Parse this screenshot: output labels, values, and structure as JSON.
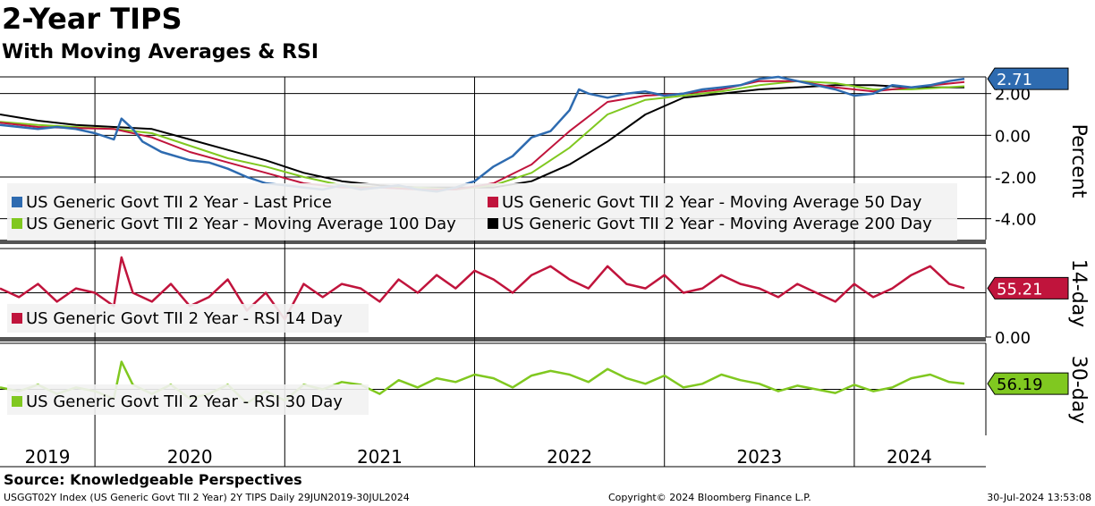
{
  "title": "2-Year TIPS",
  "subtitle": "With Moving Averages & RSI",
  "source": "Source: Knowledgeable Perspectives",
  "footer": {
    "left": "USGGT02Y Index (US Generic Govt TII 2 Year) 2Y TIPS  Daily 29JUN2019-30JUL2024",
    "middle": "Copyright© 2024 Bloomberg Finance L.P.",
    "right": "30-Jul-2024 13:53:08"
  },
  "colors": {
    "last_price": "#2e6bb0",
    "ma50": "#c0143c",
    "ma100": "#80c820",
    "ma200": "#000000",
    "rsi14": "#c0143c",
    "rsi30": "#80c820"
  },
  "chart_data": [
    {
      "type": "line",
      "panel": "price",
      "ylabel": "Percent",
      "ylim": [
        -5,
        2.8
      ],
      "yticks": [
        "2.00",
        "0.00",
        "-2.00",
        "-4.00"
      ],
      "ytick_values": [
        2,
        0,
        -2,
        -4
      ],
      "x_ticks": [
        "2019",
        "2020",
        "2021",
        "2022",
        "2023",
        "2024"
      ],
      "last_value_label": "2.71",
      "series": [
        {
          "name": "US Generic Govt TII 2 Year - Last Price",
          "color_key": "last_price",
          "x": [
            2019.5,
            2019.6,
            2019.7,
            2019.8,
            2019.9,
            2020.0,
            2020.1,
            2020.14,
            2020.2,
            2020.25,
            2020.35,
            2020.5,
            2020.6,
            2020.7,
            2020.8,
            2020.9,
            2021.0,
            2021.1,
            2021.2,
            2021.3,
            2021.4,
            2021.5,
            2021.6,
            2021.7,
            2021.8,
            2021.9,
            2022.0,
            2022.1,
            2022.2,
            2022.3,
            2022.4,
            2022.5,
            2022.55,
            2022.6,
            2022.7,
            2022.8,
            2022.9,
            2023.0,
            2023.1,
            2023.2,
            2023.3,
            2023.4,
            2023.5,
            2023.6,
            2023.7,
            2023.8,
            2023.9,
            2024.0,
            2024.1,
            2024.2,
            2024.3,
            2024.4,
            2024.5,
            2024.58
          ],
          "values": [
            0.5,
            0.4,
            0.3,
            0.4,
            0.3,
            0.1,
            -0.2,
            0.8,
            0.3,
            -0.3,
            -0.8,
            -1.2,
            -1.3,
            -1.6,
            -2.0,
            -2.3,
            -2.4,
            -2.5,
            -2.6,
            -2.4,
            -2.6,
            -2.5,
            -2.4,
            -2.6,
            -2.7,
            -2.5,
            -2.2,
            -1.5,
            -1.0,
            -0.1,
            0.2,
            1.2,
            2.2,
            2.0,
            1.8,
            2.0,
            2.1,
            1.9,
            2.0,
            2.2,
            2.3,
            2.4,
            2.7,
            2.8,
            2.6,
            2.4,
            2.2,
            1.9,
            2.0,
            2.4,
            2.3,
            2.4,
            2.6,
            2.71
          ]
        },
        {
          "name": "US Generic Govt TII 2 Year - Moving Average 50 Day",
          "color_key": "ma50",
          "x": [
            2019.5,
            2019.7,
            2019.9,
            2020.1,
            2020.3,
            2020.5,
            2020.7,
            2020.9,
            2021.1,
            2021.3,
            2021.5,
            2021.7,
            2021.9,
            2022.1,
            2022.3,
            2022.5,
            2022.7,
            2022.9,
            2023.1,
            2023.3,
            2023.5,
            2023.7,
            2023.9,
            2024.1,
            2024.3,
            2024.58
          ],
          "values": [
            0.6,
            0.4,
            0.35,
            0.3,
            -0.1,
            -0.8,
            -1.3,
            -1.8,
            -2.3,
            -2.5,
            -2.5,
            -2.6,
            -2.6,
            -2.3,
            -1.4,
            0.2,
            1.6,
            1.9,
            2.0,
            2.2,
            2.6,
            2.6,
            2.3,
            2.1,
            2.3,
            2.55
          ]
        },
        {
          "name": "US Generic Govt TII 2 Year - Moving Average 100 Day",
          "color_key": "ma100",
          "x": [
            2019.5,
            2019.7,
            2019.9,
            2020.1,
            2020.3,
            2020.5,
            2020.7,
            2020.9,
            2021.1,
            2021.3,
            2021.5,
            2021.7,
            2021.9,
            2022.1,
            2022.3,
            2022.5,
            2022.7,
            2022.9,
            2023.1,
            2023.3,
            2023.5,
            2023.7,
            2023.9,
            2024.1,
            2024.3,
            2024.58
          ],
          "values": [
            0.65,
            0.5,
            0.4,
            0.3,
            0.1,
            -0.5,
            -1.1,
            -1.5,
            -2.0,
            -2.4,
            -2.5,
            -2.5,
            -2.6,
            -2.4,
            -1.8,
            -0.6,
            1.0,
            1.7,
            1.9,
            2.1,
            2.4,
            2.6,
            2.5,
            2.2,
            2.2,
            2.35
          ]
        },
        {
          "name": "US Generic Govt TII 2 Year - Moving Average 200 Day",
          "color_key": "ma200",
          "x": [
            2019.5,
            2019.7,
            2019.9,
            2020.1,
            2020.3,
            2020.5,
            2020.7,
            2020.9,
            2021.1,
            2021.3,
            2021.5,
            2021.7,
            2021.9,
            2022.1,
            2022.3,
            2022.5,
            2022.7,
            2022.9,
            2023.1,
            2023.3,
            2023.5,
            2023.7,
            2023.9,
            2024.1,
            2024.3,
            2024.58
          ],
          "values": [
            1.0,
            0.7,
            0.5,
            0.4,
            0.3,
            -0.2,
            -0.7,
            -1.2,
            -1.8,
            -2.2,
            -2.4,
            -2.5,
            -2.5,
            -2.5,
            -2.2,
            -1.4,
            -0.3,
            1.0,
            1.8,
            2.0,
            2.2,
            2.3,
            2.4,
            2.4,
            2.3,
            2.3
          ]
        }
      ]
    },
    {
      "type": "line",
      "panel": "rsi14",
      "ylabel": "14-day",
      "ylim": [
        0,
        100
      ],
      "yticks": [
        "0.00"
      ],
      "ytick_values": [
        0
      ],
      "last_value_label": "55.21",
      "series": [
        {
          "name": "US Generic Govt TII 2 Year - RSI 14 Day",
          "color_key": "rsi14",
          "x": [
            2019.5,
            2019.6,
            2019.7,
            2019.8,
            2019.9,
            2020.0,
            2020.1,
            2020.14,
            2020.2,
            2020.3,
            2020.4,
            2020.5,
            2020.6,
            2020.7,
            2020.8,
            2020.9,
            2021.0,
            2021.1,
            2021.2,
            2021.3,
            2021.4,
            2021.5,
            2021.6,
            2021.7,
            2021.8,
            2021.9,
            2022.0,
            2022.1,
            2022.2,
            2022.3,
            2022.4,
            2022.5,
            2022.6,
            2022.7,
            2022.8,
            2022.9,
            2023.0,
            2023.1,
            2023.2,
            2023.3,
            2023.4,
            2023.5,
            2023.6,
            2023.7,
            2023.8,
            2023.9,
            2024.0,
            2024.1,
            2024.2,
            2024.3,
            2024.4,
            2024.5,
            2024.58
          ],
          "values": [
            55,
            45,
            60,
            40,
            55,
            50,
            35,
            90,
            50,
            40,
            60,
            35,
            45,
            65,
            30,
            50,
            20,
            60,
            45,
            60,
            55,
            40,
            65,
            50,
            70,
            55,
            75,
            65,
            50,
            70,
            80,
            65,
            55,
            80,
            60,
            55,
            70,
            50,
            55,
            70,
            60,
            55,
            45,
            60,
            50,
            40,
            60,
            45,
            55,
            70,
            80,
            60,
            55.21
          ]
        }
      ]
    },
    {
      "type": "line",
      "panel": "rsi30",
      "ylabel": "30-day",
      "ylim": [
        0,
        100
      ],
      "yticks": [],
      "ytick_values": [],
      "last_value_label": "56.19",
      "series": [
        {
          "name": "US Generic Govt TII 2 Year - RSI 30 Day",
          "color_key": "rsi30",
          "x": [
            2019.5,
            2019.6,
            2019.7,
            2019.8,
            2019.9,
            2020.0,
            2020.1,
            2020.14,
            2020.2,
            2020.3,
            2020.4,
            2020.5,
            2020.6,
            2020.7,
            2020.8,
            2020.9,
            2021.0,
            2021.1,
            2021.2,
            2021.3,
            2021.4,
            2021.5,
            2021.6,
            2021.7,
            2021.8,
            2021.9,
            2022.0,
            2022.1,
            2022.2,
            2022.3,
            2022.4,
            2022.5,
            2022.6,
            2022.7,
            2022.8,
            2022.9,
            2023.0,
            2023.1,
            2023.2,
            2023.3,
            2023.4,
            2023.5,
            2023.6,
            2023.7,
            2023.8,
            2023.9,
            2024.0,
            2024.1,
            2024.2,
            2024.3,
            2024.4,
            2024.5,
            2024.58
          ],
          "values": [
            52,
            48,
            55,
            45,
            52,
            48,
            40,
            80,
            55,
            45,
            55,
            40,
            45,
            55,
            35,
            48,
            38,
            55,
            50,
            58,
            55,
            45,
            60,
            52,
            62,
            58,
            66,
            62,
            52,
            65,
            70,
            66,
            58,
            72,
            62,
            56,
            65,
            52,
            56,
            66,
            60,
            56,
            48,
            54,
            50,
            46,
            55,
            48,
            52,
            62,
            66,
            58,
            56.19
          ]
        }
      ]
    }
  ]
}
